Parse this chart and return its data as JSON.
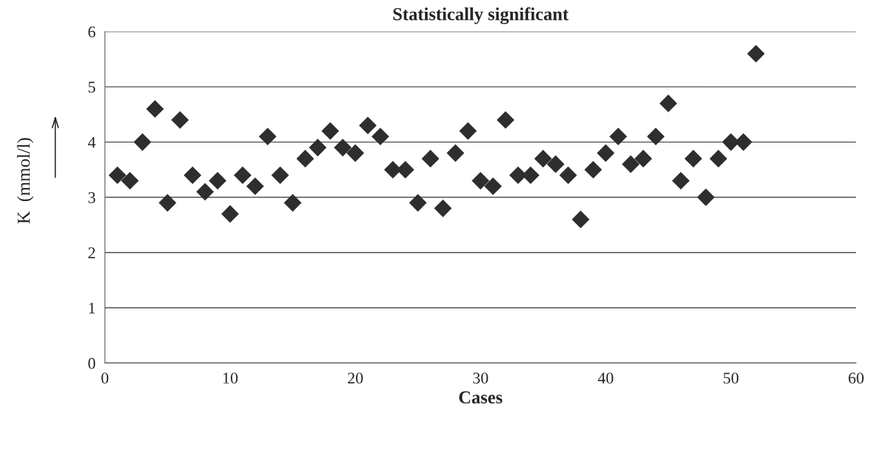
{
  "chart_data": {
    "type": "scatter",
    "title": "Statistically significant",
    "xlabel": "Cases",
    "ylabel": "K  (mmol/l)",
    "x": [
      1,
      2,
      3,
      4,
      5,
      6,
      7,
      8,
      9,
      10,
      11,
      12,
      13,
      14,
      15,
      16,
      17,
      18,
      19,
      20,
      21,
      22,
      23,
      24,
      25,
      26,
      27,
      28,
      29,
      30,
      31,
      32,
      33,
      34,
      35,
      36,
      37,
      38,
      39,
      40,
      41,
      42,
      43,
      44,
      45,
      46,
      47,
      48,
      49,
      50,
      51,
      52
    ],
    "values": [
      3.4,
      3.3,
      4.0,
      4.6,
      2.9,
      4.4,
      3.4,
      3.1,
      3.3,
      2.7,
      3.4,
      3.2,
      4.1,
      3.4,
      2.9,
      3.7,
      3.9,
      4.2,
      3.9,
      3.8,
      4.3,
      4.1,
      3.5,
      3.5,
      2.9,
      3.7,
      2.8,
      3.8,
      4.2,
      3.3,
      3.2,
      4.4,
      3.4,
      3.4,
      3.7,
      3.6,
      3.4,
      2.6,
      3.5,
      3.8,
      4.1,
      3.6,
      3.7,
      4.1,
      4.7,
      3.3,
      3.7,
      3.0,
      3.7,
      4.0,
      4.0,
      5.6
    ],
    "color": "#2e2e2e",
    "marker": "diamond",
    "xlim": [
      0,
      60
    ],
    "xticks": [
      0,
      10,
      20,
      30,
      40,
      50,
      60
    ],
    "ylim": [
      0,
      6
    ],
    "yticks": [
      0,
      1,
      2,
      3,
      4,
      5,
      6
    ],
    "grid": "y"
  }
}
